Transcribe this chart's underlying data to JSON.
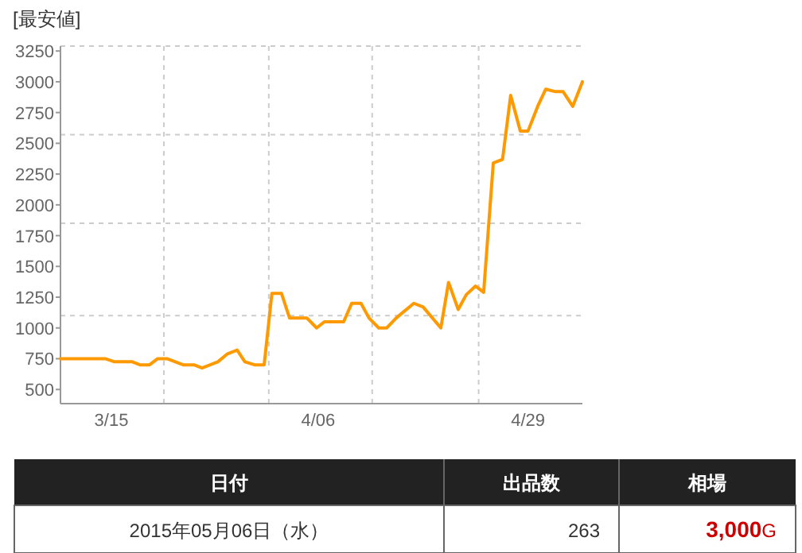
{
  "chart_data": {
    "type": "line",
    "title": "[最安値]",
    "x": [
      "2015-03-09T12:00",
      "2015-03-14T08:00",
      "2015-03-15T08:00",
      "2015-03-17T06:00",
      "2015-03-18T02:00",
      "2015-03-19T03:00",
      "2015-03-20T00:00",
      "2015-03-21T00:00",
      "2015-03-22T18:00",
      "2015-03-23T22:00",
      "2015-03-24T19:00",
      "2015-03-26T12:00",
      "2015-03-27T13:00",
      "2015-03-28T14:00",
      "2015-03-29T10:00",
      "2015-03-30T11:00",
      "2015-03-31T12:00",
      "2015-04-01T08:00",
      "2015-04-02T09:00",
      "2015-04-03T06:00",
      "2015-04-05T03:00",
      "2015-04-06T04:00",
      "2015-04-07T00:00",
      "2015-04-09T02:00",
      "2015-04-09T23:00",
      "2015-04-10T23:00",
      "2015-04-11T20:00",
      "2015-04-12T21:00",
      "2015-04-13T18:00",
      "2015-04-14T18:00",
      "2015-04-16T16:00",
      "2015-04-17T16:00",
      "2015-04-19T14:00",
      "2015-04-20T10:00",
      "2015-04-21T11:00",
      "2015-04-22T08:00",
      "2015-04-23T08:00",
      "2015-04-24T05:00",
      "2015-04-25T06:00",
      "2015-04-26T06:00",
      "2015-04-27T03:00",
      "2015-04-28T04:00",
      "2015-04-29T00:00",
      "2015-04-30T01:00",
      "2015-04-30T22:00",
      "2015-05-01T23:00",
      "2015-05-02T19:00",
      "2015-05-03T20:00",
      "2015-05-04T21:00"
    ],
    "series": [
      {
        "color": "#ff9900",
        "values": [
          750,
          750,
          725,
          725,
          700,
          700,
          750,
          750,
          700,
          700,
          675,
          725,
          790,
          820,
          725,
          700,
          700,
          1280,
          1280,
          1080,
          1080,
          1000,
          1050,
          1050,
          1200,
          1200,
          1080,
          1000,
          1000,
          1080,
          1200,
          1170,
          1000,
          1370,
          1150,
          1270,
          1340,
          1290,
          2340,
          2370,
          2890,
          2600,
          2600,
          2800,
          2940,
          2920,
          2920,
          2800,
          3000
        ]
      }
    ],
    "xlim": [
      "2015-03-09T12:00",
      "2015-05-04T21:00"
    ],
    "xticks": [
      {
        "value": "2015-03-15T00:00",
        "label": "3/15"
      },
      {
        "value": "2015-04-06T08:00",
        "label": "4/06"
      },
      {
        "value": "2015-04-29T00:00",
        "label": "4/29"
      }
    ],
    "ylim": [
      385,
      3290
    ],
    "yticks": [
      500,
      750,
      1000,
      1250,
      1500,
      1750,
      2000,
      2250,
      2500,
      2750,
      3000,
      3250
    ],
    "ref_lines": [
      {
        "axis": "x",
        "value": "2015-03-20T16:00",
        "color": "#cccccc",
        "line_style": "dashed"
      },
      {
        "axis": "x",
        "value": "2015-04-01T00:00",
        "color": "#cccccc",
        "line_style": "dashed"
      },
      {
        "axis": "x",
        "value": "2015-04-12T04:00",
        "color": "#cccccc",
        "line_style": "dashed"
      },
      {
        "axis": "x",
        "value": "2015-04-23T16:00",
        "color": "#cccccc",
        "line_style": "dashed"
      },
      {
        "axis": "y",
        "value": 2570,
        "color": "#cccccc",
        "line_style": "dashed"
      },
      {
        "axis": "y",
        "value": 1850,
        "color": "#cccccc",
        "line_style": "dashed"
      },
      {
        "axis": "y",
        "value": 1100,
        "color": "#cccccc",
        "line_style": "dashed"
      }
    ],
    "annotations": [
      "日付",
      "出品数",
      "相場",
      "2015年05月06日（水）",
      "263",
      "**3,000**G"
    ],
    "marker": "none",
    "line_style": "solid"
  }
}
